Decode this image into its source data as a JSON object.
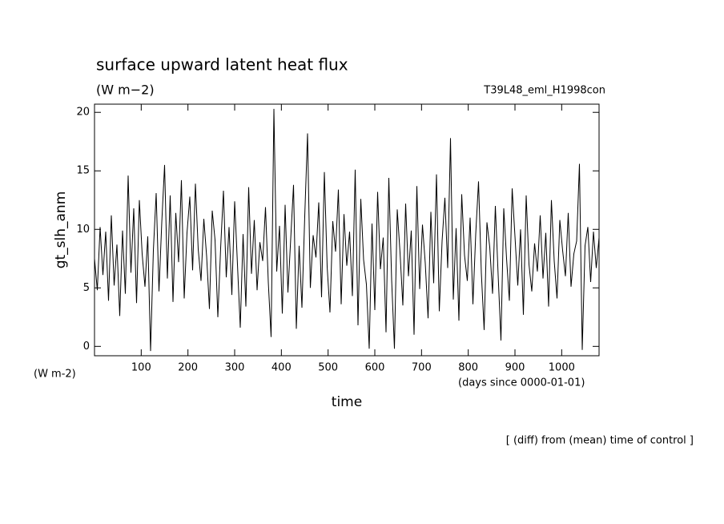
{
  "chart_data": {
    "type": "line",
    "title": "surface upward latent heat flux",
    "subtitle": "(W m−2)",
    "run_label": "T39L48_eml_H1998con",
    "y_label": "gt_slh_anm",
    "y_unit": "(W m-2)",
    "x_label": "time",
    "x_unit": "(days since 0000-01-01)",
    "note": "[ (diff) from (mean) time of control ]",
    "xlim": [
      0,
      1080
    ],
    "ylim": [
      -0.8,
      20.7
    ],
    "xticks": [
      100,
      200,
      300,
      400,
      500,
      600,
      700,
      800,
      900,
      1000
    ],
    "yticks": [
      0,
      5,
      10,
      15,
      20
    ],
    "grid": false,
    "x": [
      0,
      6,
      12,
      18,
      24,
      30,
      36,
      42,
      48,
      54,
      60,
      66,
      72,
      78,
      84,
      90,
      96,
      102,
      108,
      114,
      120,
      126,
      132,
      138,
      144,
      150,
      156,
      162,
      168,
      174,
      180,
      186,
      192,
      198,
      204,
      210,
      216,
      222,
      228,
      234,
      240,
      246,
      252,
      258,
      264,
      270,
      276,
      282,
      288,
      294,
      300,
      306,
      312,
      318,
      324,
      330,
      336,
      342,
      348,
      354,
      360,
      366,
      372,
      378,
      384,
      390,
      396,
      402,
      408,
      414,
      420,
      426,
      432,
      438,
      444,
      450,
      456,
      462,
      468,
      474,
      480,
      486,
      492,
      498,
      504,
      510,
      516,
      522,
      528,
      534,
      540,
      546,
      552,
      558,
      564,
      570,
      576,
      582,
      588,
      594,
      600,
      606,
      612,
      618,
      624,
      630,
      636,
      642,
      648,
      654,
      660,
      666,
      672,
      678,
      684,
      690,
      696,
      702,
      708,
      714,
      720,
      726,
      732,
      738,
      744,
      750,
      756,
      762,
      768,
      774,
      780,
      786,
      792,
      798,
      804,
      810,
      816,
      822,
      828,
      834,
      840,
      846,
      852,
      858,
      864,
      870,
      876,
      882,
      888,
      894,
      900,
      906,
      912,
      918,
      924,
      930,
      936,
      942,
      948,
      954,
      960,
      966,
      972,
      978,
      984,
      990,
      996,
      1002,
      1008,
      1014,
      1020,
      1026,
      1032,
      1038,
      1044,
      1050,
      1056,
      1062,
      1068,
      1074,
      1080
    ],
    "series": [
      {
        "color": "#000000",
        "values": [
          7.5,
          4.8,
          10.2,
          6.1,
          9.8,
          3.9,
          11.2,
          5.2,
          8.7,
          2.6,
          9.9,
          4.5,
          14.6,
          6.3,
          11.8,
          3.7,
          12.5,
          7.9,
          5.1,
          9.4,
          -0.4,
          8.2,
          13.1,
          4.7,
          10.6,
          15.5,
          5.8,
          12.9,
          3.8,
          11.4,
          7.2,
          14.2,
          4.1,
          9.7,
          12.8,
          6.5,
          13.9,
          8.3,
          5.6,
          10.9,
          7.7,
          3.2,
          11.6,
          9.1,
          2.5,
          8.4,
          13.3,
          5.9,
          10.2,
          4.4,
          12.4,
          7.0,
          1.6,
          9.6,
          3.4,
          13.6,
          6.2,
          10.8,
          4.8,
          8.9,
          7.3,
          11.9,
          5.5,
          0.8,
          20.3,
          6.4,
          10.3,
          2.8,
          12.1,
          4.6,
          9.2,
          13.8,
          1.5,
          8.6,
          3.3,
          11.1,
          18.2,
          5.0,
          9.5,
          7.6,
          12.3,
          4.2,
          14.9,
          6.8,
          2.9,
          10.7,
          8.1,
          13.4,
          3.6,
          11.3,
          6.9,
          9.8,
          4.3,
          15.1,
          1.8,
          12.6,
          7.4,
          5.3,
          -0.2,
          10.5,
          3.1,
          13.2,
          6.6,
          9.3,
          1.2,
          14.4,
          5.7,
          -0.2,
          11.7,
          8.0,
          3.5,
          12.2,
          6.0,
          9.9,
          1.0,
          13.7,
          4.9,
          10.4,
          7.1,
          2.4,
          11.5,
          5.4,
          14.7,
          3.0,
          9.0,
          12.7,
          6.7,
          17.8,
          4.0,
          10.1,
          2.2,
          13.0,
          7.8,
          5.6,
          11.0,
          3.6,
          9.6,
          14.1,
          6.3,
          1.4,
          10.6,
          8.5,
          4.5,
          12.0,
          6.1,
          0.5,
          11.8,
          7.5,
          3.9,
          13.5,
          9.4,
          5.2,
          10.0,
          2.7,
          12.9,
          7.0,
          4.7,
          8.8,
          6.4,
          11.2,
          5.8,
          9.7,
          3.4,
          12.5,
          7.3,
          4.1,
          10.8,
          8.2,
          6.0,
          11.4,
          5.1,
          7.9,
          9.0,
          15.6,
          -0.3,
          8.6,
          10.2,
          5.5,
          9.8,
          6.7,
          9.3
        ]
      }
    ]
  }
}
